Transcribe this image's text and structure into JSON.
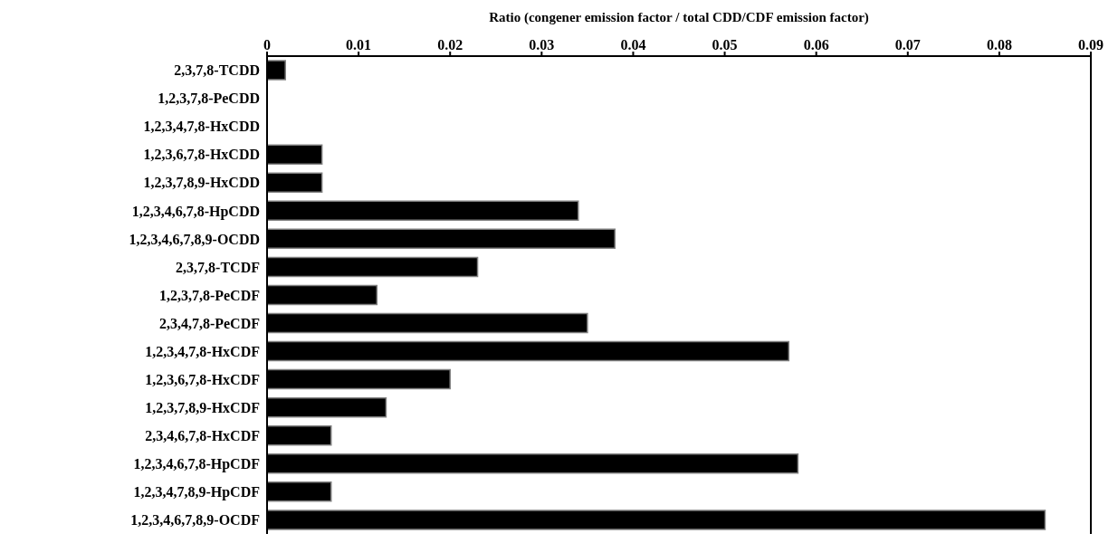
{
  "chart_data": {
    "type": "bar",
    "orientation": "horizontal",
    "xlabel": "Ratio (congener emission factor / total CDD/CDF emission factor)",
    "categories": [
      "2,3,7,8-TCDD",
      "1,2,3,7,8-PeCDD",
      "1,2,3,4,7,8-HxCDD",
      "1,2,3,6,7,8-HxCDD",
      "1,2,3,7,8,9-HxCDD",
      "1,2,3,4,6,7,8-HpCDD",
      "1,2,3,4,6,7,8,9-OCDD",
      "2,3,7,8-TCDF",
      "1,2,3,7,8-PeCDF",
      "2,3,4,7,8-PeCDF",
      "1,2,3,4,7,8-HxCDF",
      "1,2,3,6,7,8-HxCDF",
      "1,2,3,7,8,9-HxCDF",
      "2,3,4,6,7,8-HxCDF",
      "1,2,3,4,6,7,8-HpCDF",
      "1,2,3,4,7,8,9-HpCDF",
      "1,2,3,4,6,7,8,9-OCDF"
    ],
    "values": [
      0.002,
      0,
      0,
      0.006,
      0.006,
      0.034,
      0.038,
      0.023,
      0.012,
      0.035,
      0.057,
      0.02,
      0.013,
      0.007,
      0.058,
      0.007,
      0.085
    ],
    "color": "#000000",
    "xlim": [
      0,
      0.09
    ],
    "xticks": [
      0,
      0.01,
      0.02,
      0.03,
      0.04,
      0.05,
      0.06,
      0.07,
      0.08,
      0.09
    ],
    "grid": false
  }
}
